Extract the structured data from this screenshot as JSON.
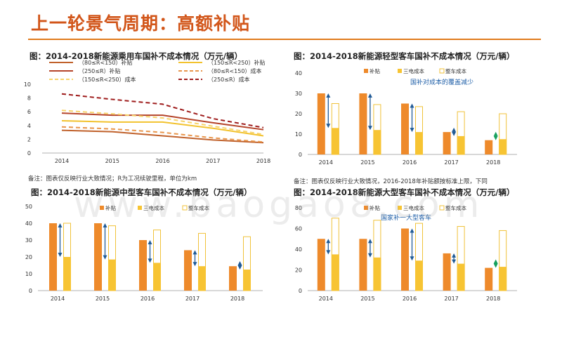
{
  "page": {
    "title": "上一轮景气周期：高额补贴",
    "watermark": "www.baogao8.com"
  },
  "chart_data": [
    {
      "type": "line",
      "title": "图：2014-2018新能源乘用车国补不成本情况（万元/辆）",
      "categories": [
        "2014",
        "2015",
        "2016",
        "2017",
        "2018"
      ],
      "ylim": [
        0,
        10
      ],
      "yticks": [
        0,
        2,
        4,
        6,
        8,
        10
      ],
      "series": [
        {
          "name": "（80≤R<150）补贴",
          "values": [
            3.3,
            3.1,
            2.5,
            1.9,
            1.5
          ],
          "color": "#c0612b",
          "dash": "solid"
        },
        {
          "name": "（150≤R<250）补贴",
          "values": [
            4.7,
            4.5,
            4.5,
            3.6,
            2.5
          ],
          "color": "#f2c22e",
          "dash": "solid"
        },
        {
          "name": "（250≤R）补贴",
          "values": [
            5.8,
            5.5,
            5.5,
            4.4,
            3.4
          ],
          "color": "#b5442a",
          "dash": "solid"
        },
        {
          "name": "（80≤R<150）成本",
          "values": [
            3.8,
            3.5,
            3.0,
            2.2,
            1.6
          ],
          "color": "#e8954b",
          "dash": "dashed"
        },
        {
          "name": "（150≤R<250）成本",
          "values": [
            6.2,
            5.7,
            5.1,
            3.9,
            2.7
          ],
          "color": "#f7d36a",
          "dash": "dashed"
        },
        {
          "name": "（250≤R）成本",
          "values": [
            8.6,
            7.8,
            7.1,
            5.0,
            3.7
          ],
          "color": "#9e1b1b",
          "dash": "dashed"
        }
      ],
      "note": "备注：图表仅反映行业大致情况；R为工况续驶里程，单位为km"
    },
    {
      "type": "bar",
      "title": "图：2014-2018新能源轻型客车国补不成本情况（万元/辆）",
      "categories": [
        "2014",
        "2015",
        "2016",
        "2017",
        "2018"
      ],
      "ylim": [
        0,
        40
      ],
      "yticks": [
        0,
        10,
        20,
        30,
        40
      ],
      "series": [
        {
          "name": "补贴",
          "values": [
            30,
            30,
            25,
            11,
            7
          ],
          "color": "#ee8a2b",
          "fill": "solid"
        },
        {
          "name": "三电成本",
          "values": [
            13,
            12,
            11,
            9,
            7.5
          ],
          "color": "#f7c433",
          "fill": "solid"
        },
        {
          "name": "整车成本",
          "values": [
            25,
            24.5,
            23.5,
            21,
            20
          ],
          "color": "#f0c23a",
          "fill": "outline"
        }
      ],
      "annotation": "国补对成本的覆盖减少",
      "note": "备注：图表仅反映行业大致情况，2016-2018年补贴额按标准上限，下同"
    },
    {
      "type": "bar",
      "title": "图：2014-2018新能源中型客车国补不成本情况（万元/辆）",
      "categories": [
        "2014",
        "2015",
        "2016",
        "2017",
        "2018"
      ],
      "ylim": [
        0,
        50
      ],
      "yticks": [
        0,
        10,
        20,
        30,
        40,
        50
      ],
      "series": [
        {
          "name": "补贴",
          "values": [
            40,
            40,
            30,
            24,
            14.5
          ],
          "color": "#ee8a2b",
          "fill": "solid"
        },
        {
          "name": "三电成本",
          "values": [
            20,
            18.5,
            16.5,
            14.5,
            12.5
          ],
          "color": "#f7c433",
          "fill": "solid"
        },
        {
          "name": "整车成本",
          "values": [
            40,
            38.5,
            36,
            34,
            32
          ],
          "color": "#f0c23a",
          "fill": "outline"
        }
      ]
    },
    {
      "type": "bar",
      "title": "图：2014-2018新能源大型客车国补不成本情况（万元/辆）",
      "categories": [
        "2014",
        "2015",
        "2016",
        "2017",
        "2018"
      ],
      "ylim": [
        0,
        80
      ],
      "yticks": [
        0,
        20,
        40,
        60,
        80
      ],
      "series": [
        {
          "name": "补贴",
          "values": [
            50,
            50,
            60,
            36,
            22
          ],
          "color": "#ee8a2b",
          "fill": "solid"
        },
        {
          "name": "三电成本",
          "values": [
            35,
            32,
            29,
            26,
            23
          ],
          "color": "#f7c433",
          "fill": "solid"
        },
        {
          "name": "整车成本",
          "values": [
            70,
            68,
            65,
            62,
            58
          ],
          "color": "#f0c23a",
          "fill": "outline"
        }
      ],
      "annotation": "国家补一大型客车"
    }
  ]
}
